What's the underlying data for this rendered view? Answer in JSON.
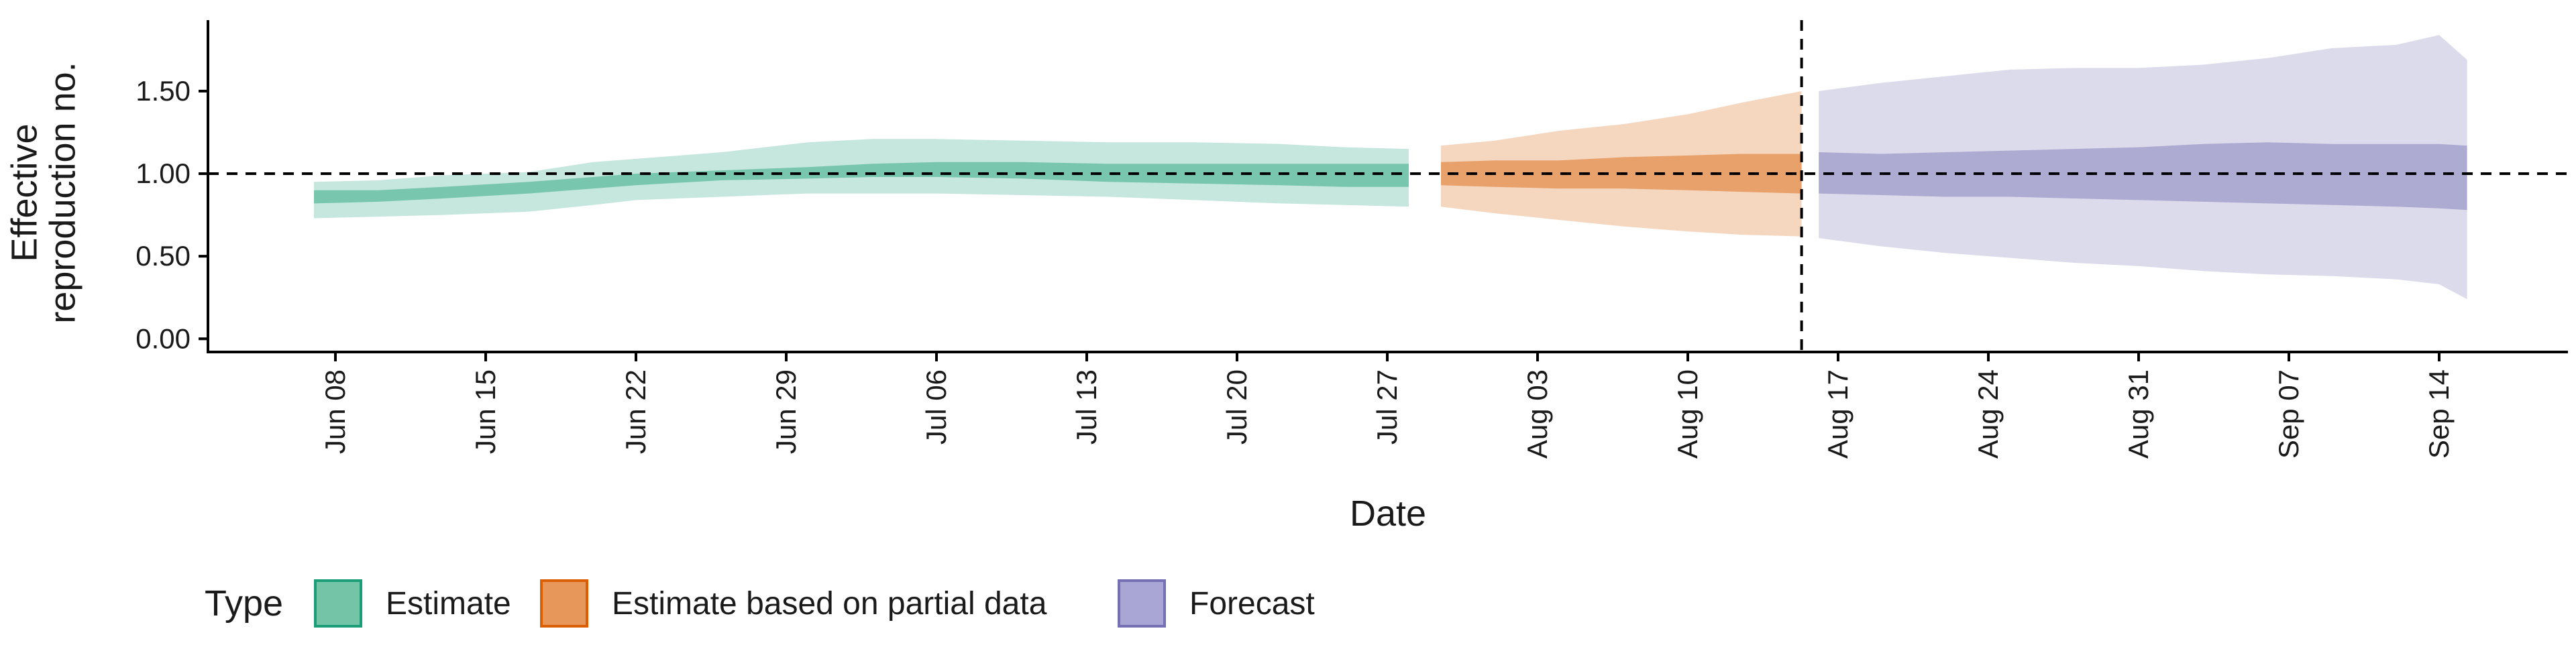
{
  "chart_data": {
    "type": "area",
    "title": "",
    "xlabel": "Date",
    "ylabel_lines": [
      "Effective",
      "reproduction no."
    ],
    "ylim": [
      -0.08,
      1.93
    ],
    "y_ticks": [
      {
        "value": 0.0,
        "label": "0.00"
      },
      {
        "value": 0.5,
        "label": "0.50"
      },
      {
        "value": 1.0,
        "label": "1.00"
      },
      {
        "value": 1.5,
        "label": "1.50"
      }
    ],
    "x_ticks": [
      {
        "day": 0,
        "label": "Jun 08"
      },
      {
        "day": 7,
        "label": "Jun 15"
      },
      {
        "day": 14,
        "label": "Jun 22"
      },
      {
        "day": 21,
        "label": "Jun 29"
      },
      {
        "day": 28,
        "label": "Jul 06"
      },
      {
        "day": 35,
        "label": "Jul 13"
      },
      {
        "day": 42,
        "label": "Jul 20"
      },
      {
        "day": 49,
        "label": "Jul 27"
      },
      {
        "day": 56,
        "label": "Aug 03"
      },
      {
        "day": 63,
        "label": "Aug 10"
      },
      {
        "day": 70,
        "label": "Aug 17"
      },
      {
        "day": 77,
        "label": "Aug 24"
      },
      {
        "day": 84,
        "label": "Aug 31"
      },
      {
        "day": 91,
        "label": "Sep 07"
      },
      {
        "day": 98,
        "label": "Sep 14"
      }
    ],
    "reference_line_y": 1.0,
    "vertical_line_day": 68.3,
    "series": [
      {
        "name": "Estimate",
        "color": "#1b9e77",
        "x": [
          -1,
          2,
          5,
          9,
          12,
          14,
          18,
          22,
          25,
          28,
          32,
          36,
          40,
          44,
          47,
          50
        ],
        "upper90": [
          0.95,
          0.96,
          0.99,
          1.01,
          1.07,
          1.09,
          1.13,
          1.19,
          1.21,
          1.21,
          1.2,
          1.19,
          1.19,
          1.18,
          1.16,
          1.15
        ],
        "upper50": [
          0.9,
          0.9,
          0.92,
          0.95,
          0.98,
          1.0,
          1.02,
          1.04,
          1.06,
          1.07,
          1.07,
          1.06,
          1.06,
          1.06,
          1.06,
          1.06
        ],
        "lower50": [
          0.82,
          0.83,
          0.85,
          0.88,
          0.91,
          0.93,
          0.96,
          0.97,
          0.98,
          0.98,
          0.97,
          0.95,
          0.94,
          0.93,
          0.92,
          0.92
        ],
        "lower90": [
          0.73,
          0.74,
          0.75,
          0.77,
          0.81,
          0.84,
          0.86,
          0.88,
          0.88,
          0.88,
          0.87,
          0.86,
          0.84,
          0.82,
          0.81,
          0.8
        ]
      },
      {
        "name": "Estimate based on partial data",
        "color": "#d95f02",
        "x": [
          51.5,
          54,
          57,
          60,
          63,
          65.5,
          68.3
        ],
        "upper90": [
          1.17,
          1.2,
          1.26,
          1.3,
          1.36,
          1.43,
          1.5
        ],
        "upper50": [
          1.07,
          1.08,
          1.08,
          1.1,
          1.11,
          1.12,
          1.12
        ],
        "lower50": [
          0.93,
          0.92,
          0.91,
          0.91,
          0.9,
          0.89,
          0.88
        ],
        "lower90": [
          0.8,
          0.76,
          0.72,
          0.68,
          0.65,
          0.63,
          0.62
        ]
      },
      {
        "name": "Forecast",
        "color": "#7570b3",
        "x": [
          69.1,
          72,
          75,
          78,
          81,
          84,
          87,
          90,
          93,
          96,
          98,
          99.3
        ],
        "upper90": [
          1.5,
          1.55,
          1.59,
          1.63,
          1.64,
          1.64,
          1.66,
          1.7,
          1.76,
          1.78,
          1.84,
          1.69
        ],
        "upper50": [
          1.13,
          1.12,
          1.13,
          1.14,
          1.15,
          1.16,
          1.18,
          1.19,
          1.18,
          1.18,
          1.18,
          1.17
        ],
        "lower50": [
          0.88,
          0.87,
          0.86,
          0.86,
          0.85,
          0.84,
          0.83,
          0.82,
          0.81,
          0.8,
          0.79,
          0.78
        ],
        "lower90": [
          0.61,
          0.56,
          0.52,
          0.49,
          0.46,
          0.44,
          0.41,
          0.39,
          0.38,
          0.36,
          0.33,
          0.24
        ]
      }
    ],
    "legend": {
      "title": "Type",
      "placement": "bottom-left",
      "items": [
        {
          "label": "Estimate",
          "fill": "#74c4a7",
          "stroke": "#1b9e77"
        },
        {
          "label": "Estimate based on partial data",
          "fill": "#e8975a",
          "stroke": "#d95f02"
        },
        {
          "label": "Forecast",
          "fill": "#a9a6d6",
          "stroke": "#7570b3"
        }
      ]
    }
  }
}
